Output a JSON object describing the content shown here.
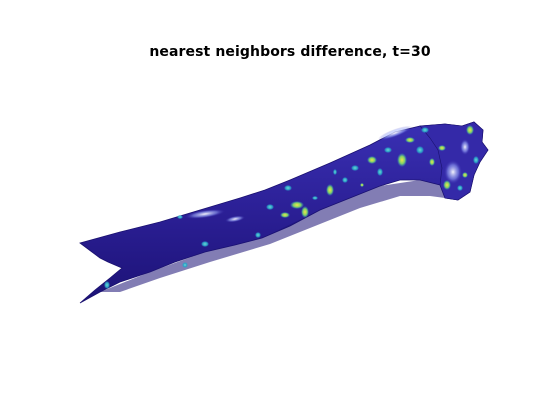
{
  "figure": {
    "title": "nearest neighbors difference, t=30"
  },
  "colors": {
    "background": "#ffffff",
    "surface_base": "#2b1f95",
    "surface_dark": "#1a1170",
    "surface_shade": "#3a2fb0",
    "highlight": "#e8f0ff",
    "spot_cyan": "#2aa6c8",
    "spot_green": "#3dbb8a",
    "spot_yellow": "#d9d84a"
  }
}
